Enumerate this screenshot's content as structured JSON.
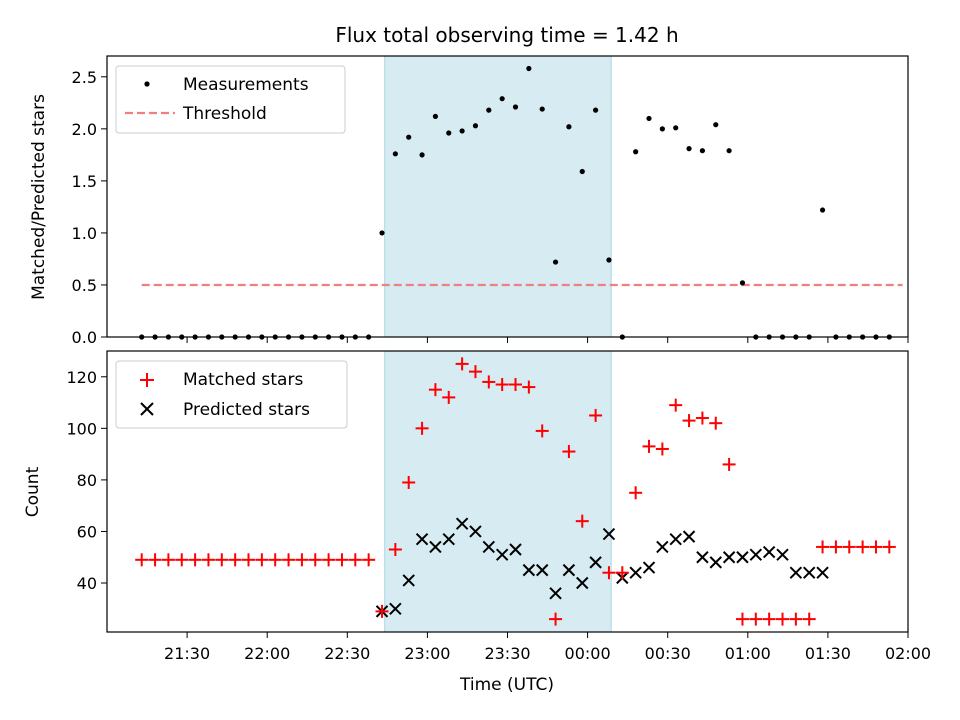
{
  "chart_data": {
    "title": "Flux total observing time = 1.42 h",
    "xlabel": "Time (UTC)",
    "x_tick_labels": [
      "21:30",
      "22:00",
      "22:30",
      "23:00",
      "23:30",
      "00:00",
      "00:30",
      "01:00",
      "01:30",
      "02:00"
    ],
    "x_tick_values": [
      21.5,
      22.0,
      22.5,
      23.0,
      23.5,
      24.0,
      24.5,
      25.0,
      25.5,
      26.0
    ],
    "xlim": [
      21.0,
      26.0
    ],
    "highlight_span": {
      "start": 22.7333,
      "end": 24.1472,
      "color": "#add8e6"
    },
    "colors": {
      "measurements": "#000000",
      "threshold": "#f08080",
      "matched": "#ff0000",
      "predicted": "#000000"
    },
    "panels": [
      {
        "type": "scatter",
        "ylabel": "Matched/Predicted stars",
        "ylim": [
          0,
          2.7
        ],
        "y_ticks": [
          0.0,
          0.5,
          1.0,
          1.5,
          2.0,
          2.5
        ],
        "y_tick_labels": [
          "0.0",
          "0.5",
          "1.0",
          "1.5",
          "2.0",
          "2.5"
        ],
        "legend": "top-left",
        "series": [
          {
            "name": "Measurements",
            "marker": "dot",
            "x": [
              21.2167,
              21.3,
              21.3833,
              21.4667,
              21.55,
              21.6333,
              21.7167,
              21.8,
              21.8833,
              21.9667,
              22.05,
              22.1333,
              22.2167,
              22.3,
              22.3833,
              22.4667,
              22.55,
              22.6333,
              22.7167,
              22.8,
              22.8833,
              22.9667,
              23.05,
              23.1333,
              23.2167,
              23.3,
              23.3833,
              23.4667,
              23.55,
              23.6333,
              23.7167,
              23.8,
              23.8833,
              23.9667,
              24.05,
              24.1333,
              24.2167,
              24.3,
              24.3833,
              24.4667,
              24.55,
              24.6333,
              24.7167,
              24.8,
              24.8833,
              24.9667,
              25.05,
              25.1333,
              25.2167,
              25.3,
              25.3833,
              25.4667,
              25.55,
              25.6333,
              25.7167,
              25.8,
              25.8833
            ],
            "y": [
              0,
              0,
              0,
              0,
              0,
              0,
              0,
              0,
              0,
              0,
              0,
              0,
              0,
              0,
              0,
              0,
              0,
              0,
              1.0,
              1.76,
              1.92,
              1.75,
              2.12,
              1.96,
              1.98,
              2.03,
              2.18,
              2.29,
              2.21,
              2.58,
              2.19,
              0.72,
              2.02,
              1.59,
              2.18,
              0.74,
              0,
              1.78,
              2.1,
              2.0,
              2.01,
              1.81,
              1.79,
              2.04,
              1.79,
              0.52,
              0,
              0,
              0,
              0,
              0,
              1.22,
              0,
              0,
              0,
              0,
              0
            ]
          },
          {
            "name": "Threshold",
            "style": "dashed",
            "x": [
              21.2167,
              25.9667
            ],
            "y": [
              0.5,
              0.5
            ]
          }
        ]
      },
      {
        "type": "scatter",
        "ylabel": "Count",
        "ylim": [
          21,
          130
        ],
        "y_ticks": [
          40,
          60,
          80,
          100,
          120
        ],
        "y_tick_labels": [
          "40",
          "60",
          "80",
          "100",
          "120"
        ],
        "legend": "top-left",
        "series": [
          {
            "name": "Matched stars",
            "marker": "plus",
            "x": [
              21.2167,
              21.3,
              21.3833,
              21.4667,
              21.55,
              21.6333,
              21.7167,
              21.8,
              21.8833,
              21.9667,
              22.05,
              22.1333,
              22.2167,
              22.3,
              22.3833,
              22.4667,
              22.55,
              22.6333,
              22.7167,
              22.8,
              22.8833,
              22.9667,
              23.05,
              23.1333,
              23.2167,
              23.3,
              23.3833,
              23.4667,
              23.55,
              23.6333,
              23.7167,
              23.8,
              23.8833,
              23.9667,
              24.05,
              24.1333,
              24.2167,
              24.3,
              24.3833,
              24.4667,
              24.55,
              24.6333,
              24.7167,
              24.8,
              24.8833,
              24.9667,
              25.05,
              25.1333,
              25.2167,
              25.3,
              25.3833,
              25.4667,
              25.55,
              25.6333,
              25.7167,
              25.8,
              25.8833
            ],
            "y": [
              49,
              49,
              49,
              49,
              49,
              49,
              49,
              49,
              49,
              49,
              49,
              49,
              49,
              49,
              49,
              49,
              49,
              49,
              29,
              53,
              79,
              100,
              115,
              112,
              125,
              122,
              118,
              117,
              117,
              116,
              99,
              26,
              91,
              64,
              105,
              44,
              44,
              75,
              93,
              92,
              109,
              103,
              104,
              102,
              86,
              26,
              26,
              26,
              26,
              26,
              26,
              54,
              54,
              54,
              54,
              54,
              54
            ]
          },
          {
            "name": "Predicted stars",
            "marker": "x",
            "x": [
              22.7167,
              22.8,
              22.8833,
              22.9667,
              23.05,
              23.1333,
              23.2167,
              23.3,
              23.3833,
              23.4667,
              23.55,
              23.6333,
              23.7167,
              23.8,
              23.8833,
              23.9667,
              24.05,
              24.1333,
              24.2167,
              24.3,
              24.3833,
              24.4667,
              24.55,
              24.6333,
              24.7167,
              24.8,
              24.8833,
              24.9667,
              25.05,
              25.1333,
              25.2167,
              25.3,
              25.3833,
              25.4667
            ],
            "y": [
              29,
              30,
              41,
              57,
              54,
              57,
              63,
              60,
              54,
              51,
              53,
              45,
              45,
              36,
              45,
              40,
              48,
              59,
              42,
              44,
              46,
              54,
              57,
              58,
              50,
              48,
              50,
              50,
              51,
              52,
              51,
              44,
              44,
              44
            ]
          }
        ]
      }
    ]
  }
}
